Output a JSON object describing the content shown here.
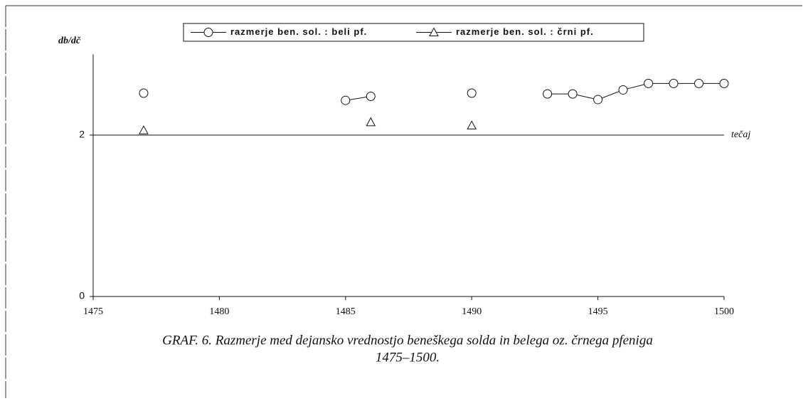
{
  "chart_data": {
    "type": "line",
    "ylabel": "db/dč",
    "x": [
      1475,
      1476,
      1477,
      1478,
      1479,
      1480,
      1481,
      1482,
      1483,
      1484,
      1485,
      1486,
      1487,
      1488,
      1489,
      1490,
      1491,
      1492,
      1493,
      1494,
      1495,
      1496,
      1497,
      1498,
      1499,
      1500
    ],
    "series": [
      {
        "name": "razmerje ben. sol. : beli pf.",
        "marker": "circle",
        "color": "#111111",
        "values": [
          null,
          null,
          2.52,
          null,
          null,
          null,
          null,
          null,
          null,
          null,
          2.43,
          2.48,
          null,
          null,
          null,
          2.52,
          null,
          null,
          2.51,
          2.51,
          2.44,
          2.56,
          2.64,
          2.64,
          2.64,
          2.64
        ]
      },
      {
        "name": "razmerje ben. sol. : črni pf.",
        "marker": "triangle",
        "color": "#111111",
        "values": [
          null,
          null,
          2.06,
          null,
          null,
          null,
          null,
          null,
          null,
          null,
          null,
          2.16,
          null,
          null,
          null,
          2.12,
          null,
          null,
          null,
          null,
          null,
          null,
          null,
          null,
          null,
          null
        ]
      }
    ],
    "xlim": [
      1475,
      1500
    ],
    "xticks": [
      1475,
      1480,
      1485,
      1490,
      1495,
      1500
    ],
    "ylim": [
      0,
      3
    ],
    "yticks": [
      0,
      2
    ],
    "reference": {
      "value": 2,
      "label": "tečaj"
    },
    "caption": [
      "GRAF. 6. Razmerje med dejansko vrednostjo beneškega solda in belega oz. črnega pfeniga",
      "1475–1500."
    ]
  }
}
